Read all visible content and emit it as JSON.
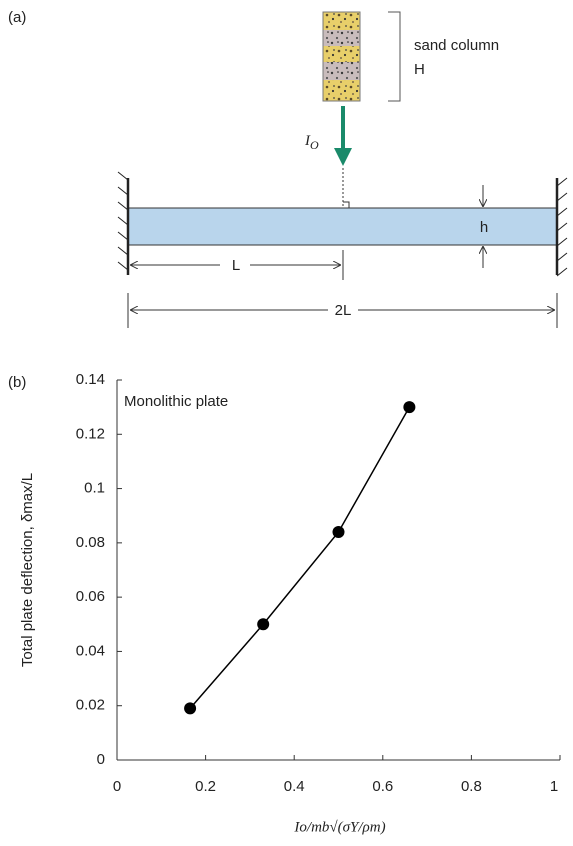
{
  "panel_a": {
    "label": "(a)",
    "sand_label": "sand column",
    "height_label": "H",
    "impulse": "I",
    "impulse_subscript": "O",
    "thickness_label": "h",
    "half_span_label": "L",
    "span_label": "2L"
  },
  "panel_b": {
    "label": "(b)"
  },
  "chart_data": {
    "type": "line",
    "annotation": "Monolithic plate",
    "ylabel": "Total plate deflection, δmax/L",
    "xlabel": "Io/mb√(σY/ρm)",
    "x": [
      0.165,
      0.33,
      0.5,
      0.66
    ],
    "series": [
      {
        "color": "#000000",
        "values": [
          0.019,
          0.05,
          0.084,
          0.13
        ]
      }
    ],
    "xlim": [
      0,
      1
    ],
    "xticks": [
      0,
      0.2,
      0.4,
      0.6,
      0.8,
      1
    ],
    "ylim": [
      0,
      0.14
    ],
    "yticks": [
      0,
      0.02,
      0.04,
      0.06,
      0.08,
      0.1,
      0.12,
      0.14
    ]
  }
}
